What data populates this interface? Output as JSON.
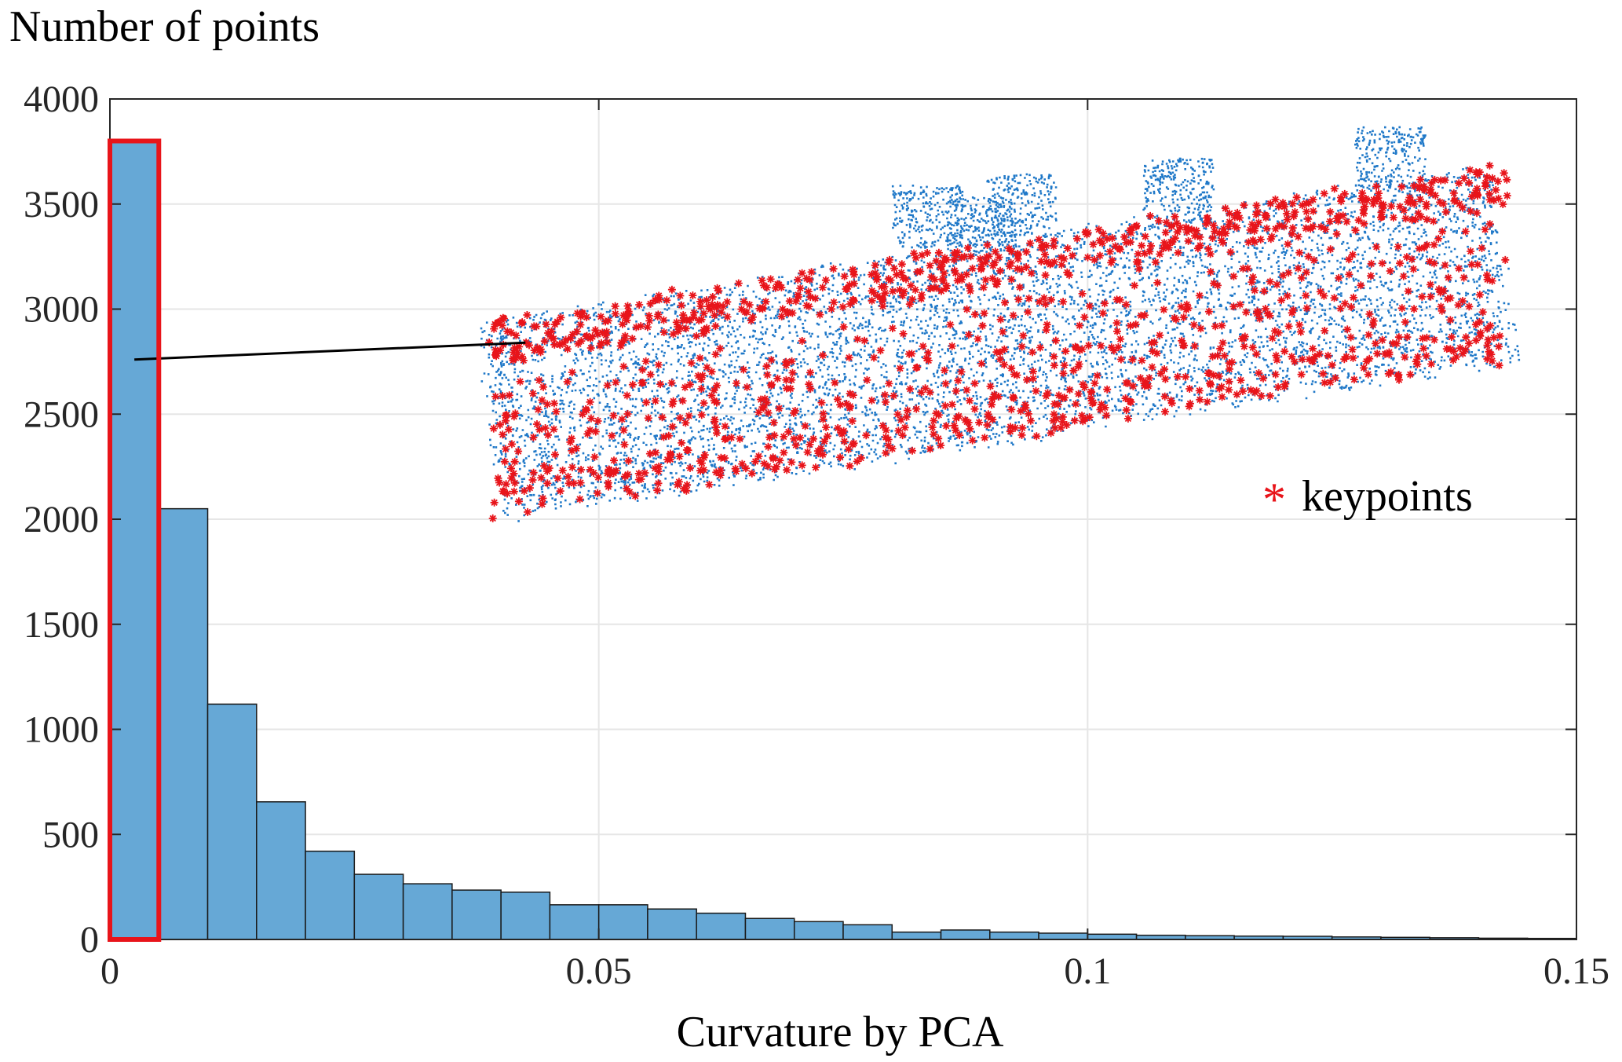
{
  "colors": {
    "bar_fill": "#66a8d6",
    "bar_edge": "#1a1a1a",
    "highlight": "#e8141a",
    "cloud_point": "#1f78c8",
    "keypoint": "#e8141a",
    "grid": "#e6e6e6",
    "axis": "#262626"
  },
  "chart_data": {
    "type": "bar",
    "title": "",
    "xlabel": "Curvature by PCA",
    "ylabel": "Number of points",
    "xlim": [
      0,
      0.15
    ],
    "ylim": [
      0,
      4000
    ],
    "xticks": [
      0,
      0.05,
      0.1,
      0.15
    ],
    "xtick_labels": [
      "0",
      "0.05",
      "0.1",
      "0.15"
    ],
    "yticks": [
      0,
      500,
      1000,
      1500,
      2000,
      2500,
      3000,
      3500,
      4000
    ],
    "ytick_labels": [
      "0",
      "500",
      "1000",
      "1500",
      "2000",
      "2500",
      "3000",
      "3500",
      "4000"
    ],
    "grid": true,
    "bin_width": 0.005,
    "bin_starts": [
      0,
      0.005,
      0.01,
      0.015,
      0.02,
      0.025,
      0.03,
      0.035,
      0.04,
      0.045,
      0.05,
      0.055,
      0.06,
      0.065,
      0.07,
      0.075,
      0.08,
      0.085,
      0.09,
      0.095,
      0.1,
      0.105,
      0.11,
      0.115,
      0.12,
      0.125,
      0.13,
      0.135,
      0.14,
      0.145
    ],
    "values": [
      3800,
      2050,
      1120,
      655,
      420,
      310,
      265,
      235,
      225,
      165,
      165,
      145,
      125,
      100,
      85,
      70,
      35,
      45,
      35,
      30,
      25,
      20,
      18,
      16,
      15,
      12,
      10,
      8,
      6,
      5
    ],
    "highlighted_bin": 0,
    "annotation": {
      "from": [
        0.0025,
        2760
      ],
      "to": [
        0.0425,
        2840
      ]
    },
    "legend": {
      "marker": "*",
      "label": "keypoints",
      "position": "right"
    },
    "inset": {
      "type": "scatter",
      "description_series": [
        "point cloud",
        "keypoints"
      ]
    }
  }
}
